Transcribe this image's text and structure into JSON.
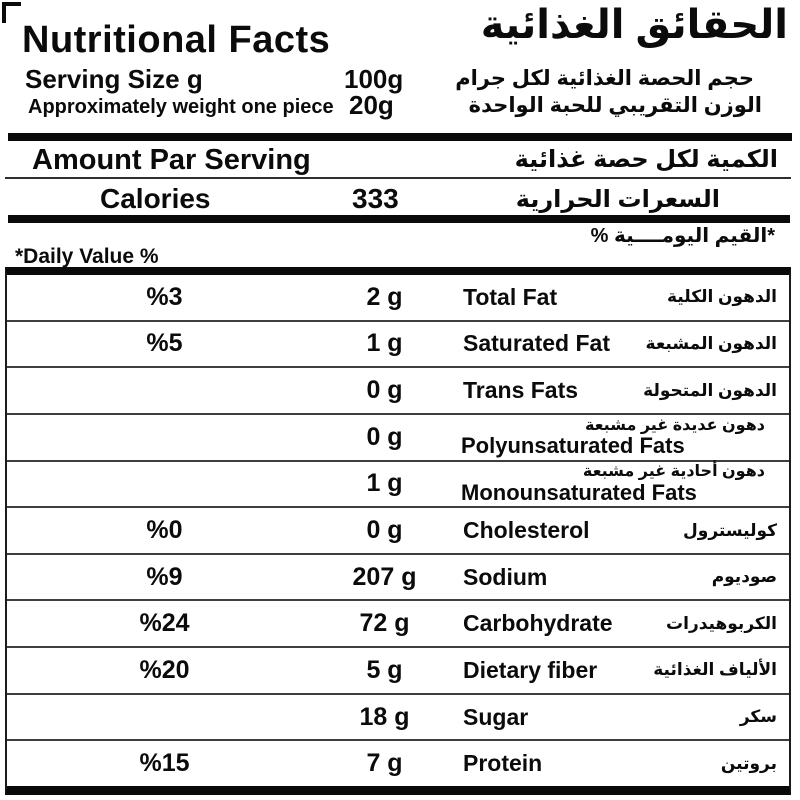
{
  "header": {
    "title_en": "Nutritional Facts",
    "title_ar": "الحقائق الغذائية",
    "serving_label_en": "Serving Size g",
    "serving_value": "100g",
    "serving_label_ar": "حجم الحصة الغذائية لكل جرام",
    "piece_label_en": "Approximately weight one piece",
    "piece_value": "20g",
    "piece_label_ar": "الوزن التقريبي للحبة الواحدة"
  },
  "amount_section": {
    "title_en": "Amount Par Serving",
    "title_ar": "الكمية لكل حصة غذائية",
    "calories_label_en": "Calories",
    "calories_value": "333",
    "calories_label_ar": "السعرات الحرارية"
  },
  "daily_value_note": {
    "label_ar": "*القيم اليومــــية %",
    "label_en": "*Daily Value %"
  },
  "table": {
    "columns": [
      "daily_value_percent",
      "amount",
      "nutrient_english",
      "nutrient_arabic"
    ],
    "rows": [
      {
        "percent": "%3",
        "amount": "2 g",
        "name_en": "Total Fat",
        "name_ar": "الدهون الكلية",
        "stacked": false
      },
      {
        "percent": "%5",
        "amount": "1 g",
        "name_en": "Saturated Fat",
        "name_ar": "الدهون المشبعة",
        "stacked": false
      },
      {
        "percent": "",
        "amount": "0 g",
        "name_en": "Trans Fats",
        "name_ar": "الدهون المتحولة",
        "stacked": false
      },
      {
        "percent": "",
        "amount": "0 g",
        "name_en": "Polyunsaturated Fats",
        "name_ar": "دهون عديدة غير مشبعة",
        "stacked": true
      },
      {
        "percent": "",
        "amount": "1 g",
        "name_en": "Monounsaturated Fats",
        "name_ar": "دهون أحادية غير مشبعة",
        "stacked": true
      },
      {
        "percent": "%0",
        "amount": "0 g",
        "name_en": "Cholesterol",
        "name_ar": "كوليسترول",
        "stacked": false
      },
      {
        "percent": "%9",
        "amount": "207 g",
        "name_en": "Sodium",
        "name_ar": "صوديوم",
        "stacked": false
      },
      {
        "percent": "%24",
        "amount": "72 g",
        "name_en": "Carbohydrate",
        "name_ar": "الكربوهيدرات",
        "stacked": false
      },
      {
        "percent": "%20",
        "amount": "5 g",
        "name_en": "Dietary fiber",
        "name_ar": "الألياف الغذائية",
        "stacked": false
      },
      {
        "percent": "",
        "amount": "18 g",
        "name_en": "Sugar",
        "name_ar": "سكر",
        "stacked": false
      },
      {
        "percent": "%15",
        "amount": "7 g",
        "name_en": "Protein",
        "name_ar": "بروتين",
        "stacked": false
      }
    ]
  },
  "colors": {
    "text": "#0b0b0b",
    "background": "#ffffff",
    "thick_bar": "#0a0a0a",
    "row_separator": "#3f3f3f"
  }
}
